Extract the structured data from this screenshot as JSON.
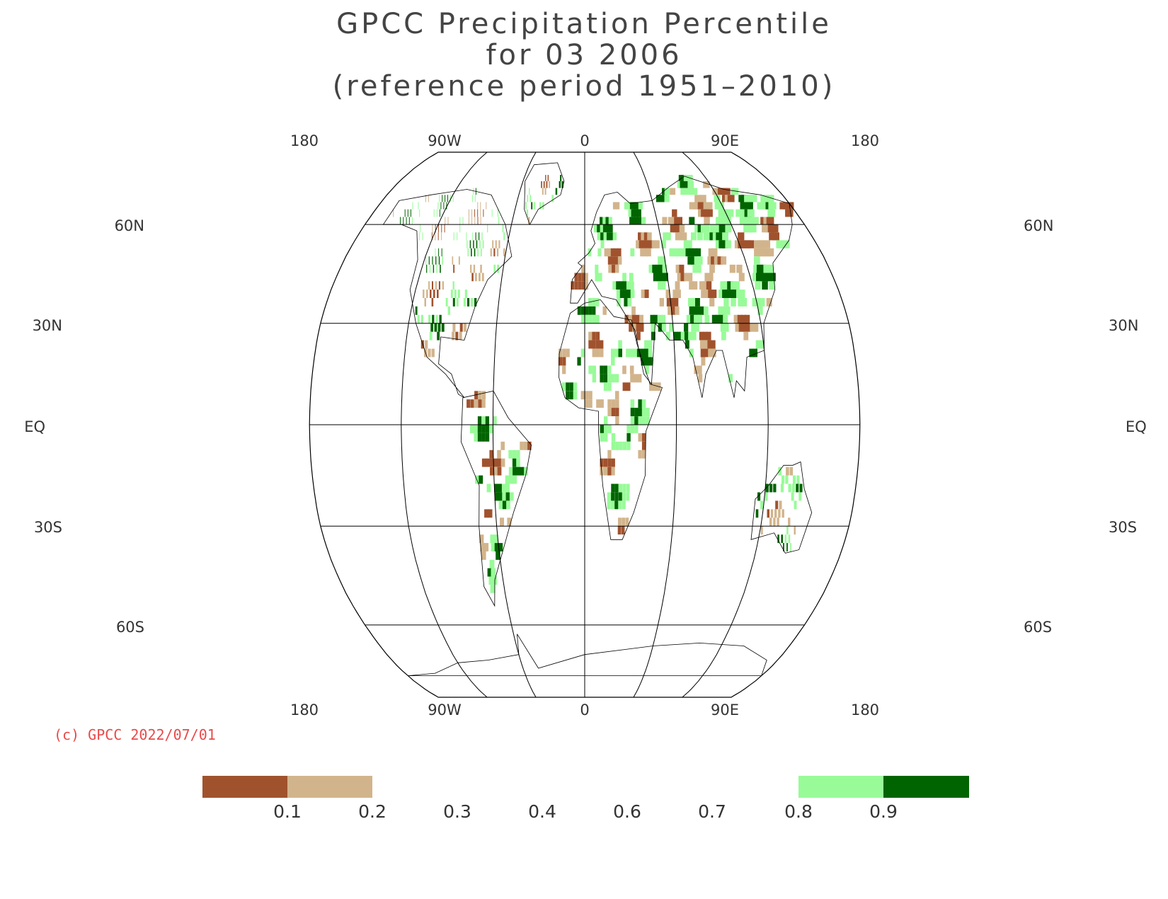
{
  "title": {
    "line1": "GPCC Precipitation Percentile",
    "line2": "for 03 2006",
    "line3": "(reference period 1951–2010)"
  },
  "lon_labels": [
    "180",
    "90W",
    "0",
    "90E",
    "180"
  ],
  "lat_labels_left": [
    "60N",
    "30N",
    "EQ",
    "30S",
    "60S"
  ],
  "lat_labels_right": [
    "60N",
    "30N",
    "EQ",
    "30S",
    "60S"
  ],
  "copyright": "(c) GPCC 2022/07/01",
  "colorbar": {
    "labels": [
      "0.1",
      "0.2",
      "0.3",
      "0.4",
      "0.6",
      "0.7",
      "0.8",
      "0.9"
    ],
    "colors": {
      "very_dry": "#a0522d",
      "dry": "#d2b48c",
      "wet": "#98fb98",
      "very_wet": "#006400"
    }
  },
  "colors": {
    "very_dry": "#a0522d",
    "dry": "#d2b48c",
    "wet": "#98fb98",
    "very_wet": "#006400",
    "grid": "#000000"
  }
}
